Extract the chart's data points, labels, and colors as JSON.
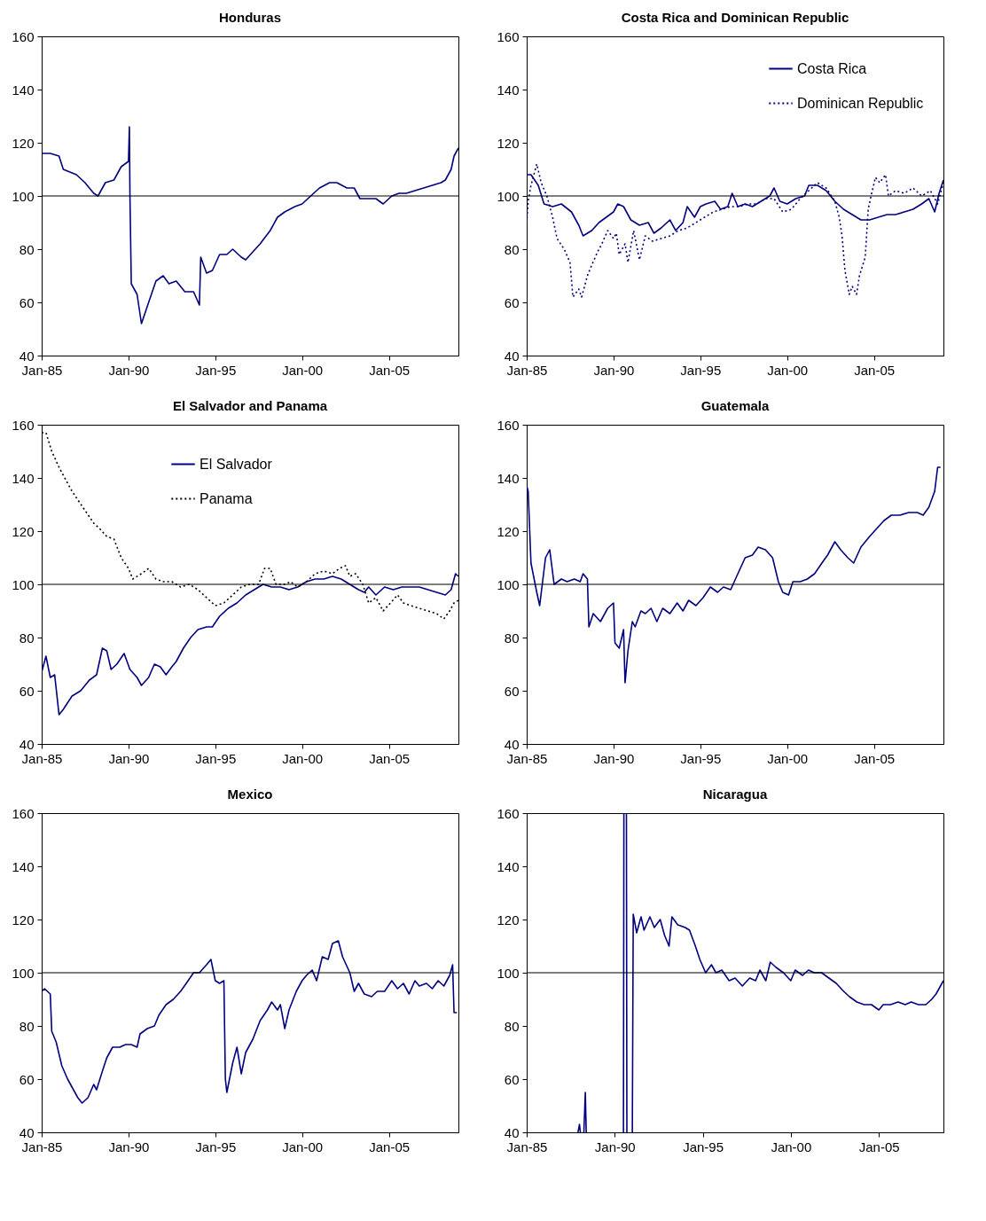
{
  "chart_data": [
    {
      "type": "line",
      "title": "Honduras",
      "series": [
        {
          "color": "#000080",
          "line_style": "solid",
          "x": [
            "1985-01",
            "1985-07",
            "1986-01",
            "1986-04",
            "1987-01",
            "1987-07",
            "1988-01",
            "1988-04",
            "1988-09",
            "1989-03",
            "1989-08",
            "1990-01",
            "1990-01-20",
            "1990-02",
            "1990-03",
            "1990-07",
            "1990-10",
            "1991-03",
            "1991-08",
            "1992-01",
            "1992-05",
            "1992-10",
            "1993-04",
            "1993-10",
            "1994-02",
            "1994-03",
            "1994-07",
            "1994-11",
            "1995-04",
            "1995-09",
            "1996-01",
            "1996-07",
            "1996-10",
            "1997-03",
            "1997-08",
            "1998-03",
            "1998-08",
            "1999-01",
            "1999-08",
            "2000-01",
            "2000-07",
            "2001-01",
            "2001-08",
            "2002-01",
            "2002-08",
            "2003-01",
            "2003-05",
            "2003-10",
            "2004-04",
            "2004-09",
            "2005-03",
            "2005-08",
            "2006-01",
            "2006-07",
            "2007-01",
            "2007-07",
            "2008-01",
            "2008-04",
            "2008-08",
            "2008-10",
            "2009-01"
          ],
          "values": [
            116,
            116,
            115,
            110,
            108,
            105,
            101,
            100,
            105,
            106,
            111,
            113,
            126,
            100,
            67,
            63,
            52,
            60,
            68,
            70,
            67,
            68,
            64,
            64,
            59,
            77,
            71,
            72,
            78,
            78,
            80,
            77,
            76,
            79,
            82,
            87,
            92,
            94,
            96,
            97,
            100,
            103,
            105,
            105,
            103,
            103,
            99,
            99,
            99,
            97,
            100,
            101,
            101,
            102,
            103,
            104,
            105,
            106,
            110,
            115,
            118
          ]
        }
      ],
      "xlim": [
        "1985-01",
        "2009-01"
      ],
      "xticks": [
        {
          "value": "1985-01",
          "label": "Jan-85"
        },
        {
          "value": "1990-01",
          "label": "Jan-90"
        },
        {
          "value": "1995-01",
          "label": "Jan-95"
        },
        {
          "value": "2000-01",
          "label": "Jan-00"
        },
        {
          "value": "2005-01",
          "label": "Jan-05"
        }
      ],
      "ylim": [
        40,
        160
      ],
      "yticks": [
        40,
        60,
        80,
        100,
        120,
        140,
        160
      ],
      "ref_lines": [
        {
          "axis": "y",
          "value": 100
        }
      ]
    },
    {
      "type": "line",
      "title": "Costa Rica and Dominican Republic",
      "legend": "top right",
      "series": [
        {
          "name": "Costa Rica",
          "color": "#000080",
          "line_style": "solid",
          "x": [
            "1985-01",
            "1985-04",
            "1985-09",
            "1986-01",
            "1986-07",
            "1987-01",
            "1987-08",
            "1988-01",
            "1988-04",
            "1988-10",
            "1989-03",
            "1989-08",
            "1990-01",
            "1990-04",
            "1990-08",
            "1991-01",
            "1991-07",
            "1992-01",
            "1992-05",
            "1992-10",
            "1993-04",
            "1993-08",
            "1994-01",
            "1994-04",
            "1994-09",
            "1995-01",
            "1995-05",
            "1995-11",
            "1996-03",
            "1996-08",
            "1996-11",
            "1997-03",
            "1997-08",
            "1998-01",
            "1998-07",
            "1999-01",
            "1999-04",
            "1999-08",
            "2000-01",
            "2000-07",
            "2001-01",
            "2001-04",
            "2001-10",
            "2002-04",
            "2002-10",
            "2003-04",
            "2003-10",
            "2004-04",
            "2004-10",
            "2005-04",
            "2005-10",
            "2006-04",
            "2006-10",
            "2007-04",
            "2007-10",
            "2008-03",
            "2008-07",
            "2008-10",
            "2009-01"
          ],
          "values": [
            108,
            108,
            104,
            97,
            96,
            97,
            94,
            89,
            85,
            87,
            90,
            92,
            94,
            97,
            96,
            91,
            89,
            90,
            86,
            88,
            91,
            87,
            90,
            96,
            92,
            96,
            97,
            98,
            95,
            96,
            101,
            96,
            97,
            96,
            98,
            100,
            103,
            98,
            97,
            99,
            100,
            104,
            104,
            102,
            98,
            95,
            93,
            91,
            91,
            92,
            93,
            93,
            94,
            95,
            97,
            99,
            94,
            101,
            106
          ]
        },
        {
          "name": "Dominican Republic",
          "color": "#000080",
          "line_style": "dotted",
          "x": [
            "1985-01",
            "1985-02",
            "1985-04",
            "1985-08",
            "1985-11",
            "1986-03",
            "1986-07",
            "1986-10",
            "1987-03",
            "1987-07",
            "1987-09",
            "1988-01",
            "1988-03",
            "1988-07",
            "1988-10",
            "1989-02",
            "1989-05",
            "1989-09",
            "1990-01",
            "1990-03",
            "1990-05",
            "1990-09",
            "1990-11",
            "1991-03",
            "1991-07",
            "1991-11",
            "1992-04",
            "1992-10",
            "1993-04",
            "1993-10",
            "1994-04",
            "1994-10",
            "1995-04",
            "1995-10",
            "1996-04",
            "1996-10",
            "1997-04",
            "1997-10",
            "1998-04",
            "1998-10",
            "1999-04",
            "1999-10",
            "2000-04",
            "2000-10",
            "2001-04",
            "2001-10",
            "2002-04",
            "2002-10",
            "2003-01",
            "2003-03",
            "2003-05",
            "2003-08",
            "2003-10",
            "2004-01",
            "2004-03",
            "2004-07",
            "2004-09",
            "2004-11",
            "2005-02",
            "2005-05",
            "2005-09",
            "2005-11",
            "2006-04",
            "2006-10",
            "2007-04",
            "2007-10",
            "2008-04",
            "2008-09",
            "2009-01"
          ],
          "values": [
            90,
            98,
            104,
            112,
            105,
            100,
            92,
            84,
            80,
            75,
            62,
            65,
            62,
            70,
            74,
            79,
            82,
            87,
            84,
            86,
            78,
            82,
            75,
            87,
            76,
            85,
            83,
            84,
            85,
            87,
            88,
            90,
            92,
            94,
            95,
            96,
            96,
            97,
            97,
            99,
            99,
            94,
            95,
            99,
            102,
            105,
            103,
            98,
            92,
            85,
            72,
            63,
            66,
            63,
            70,
            77,
            95,
            100,
            107,
            105,
            108,
            100,
            102,
            101,
            103,
            100,
            102,
            97,
            105
          ]
        }
      ],
      "xlim": [
        "1985-01",
        "2009-01"
      ],
      "xticks": [
        {
          "value": "1985-01",
          "label": "Jan-85"
        },
        {
          "value": "1990-01",
          "label": "Jan-90"
        },
        {
          "value": "1995-01",
          "label": "Jan-95"
        },
        {
          "value": "2000-01",
          "label": "Jan-00"
        },
        {
          "value": "2005-01",
          "label": "Jan-05"
        }
      ],
      "ylim": [
        40,
        160
      ],
      "yticks": [
        40,
        60,
        80,
        100,
        120,
        140,
        160
      ],
      "ref_lines": [
        {
          "axis": "y",
          "value": 100
        }
      ]
    },
    {
      "type": "line",
      "title": "El Salvador and Panama",
      "legend": "top",
      "series": [
        {
          "name": "El Salvador",
          "color": "#000080",
          "line_style": "solid",
          "x": [
            "1985-01",
            "1985-04",
            "1985-07",
            "1985-10",
            "1986-01",
            "1986-04",
            "1986-10",
            "1987-04",
            "1987-10",
            "1988-03",
            "1988-07",
            "1988-10",
            "1989-01",
            "1989-05",
            "1989-10",
            "1990-02",
            "1990-07",
            "1990-10",
            "1991-03",
            "1991-07",
            "1991-11",
            "1992-03",
            "1992-07",
            "1992-10",
            "1993-03",
            "1993-08",
            "1994-01",
            "1994-07",
            "1994-11",
            "1995-04",
            "1995-10",
            "1996-04",
            "1996-10",
            "1997-04",
            "1997-10",
            "1998-04",
            "1998-10",
            "1999-04",
            "1999-10",
            "2000-04",
            "2000-10",
            "2001-04",
            "2001-10",
            "2002-04",
            "2002-10",
            "2003-04",
            "2003-08",
            "2003-11",
            "2004-04",
            "2004-10",
            "2005-04",
            "2005-10",
            "2006-04",
            "2006-10",
            "2007-04",
            "2007-10",
            "2008-04",
            "2008-08",
            "2008-11",
            "2009-01"
          ],
          "values": [
            67,
            73,
            65,
            66,
            51,
            53,
            58,
            60,
            64,
            66,
            76,
            75,
            68,
            70,
            74,
            68,
            65,
            62,
            65,
            70,
            69,
            66,
            69,
            71,
            76,
            80,
            83,
            84,
            84,
            88,
            91,
            93,
            96,
            98,
            100,
            99,
            99,
            98,
            99,
            101,
            102,
            102,
            103,
            102,
            100,
            98,
            97,
            99,
            96,
            99,
            98,
            99,
            99,
            99,
            98,
            97,
            96,
            98,
            104,
            103
          ]
        },
        {
          "name": "Panama",
          "color": "#000000",
          "line_style": "dotted",
          "x": [
            "1985-01",
            "1985-04",
            "1985-08",
            "1986-01",
            "1986-05",
            "1986-10",
            "1987-03",
            "1987-08",
            "1988-01",
            "1988-05",
            "1988-10",
            "1989-03",
            "1989-08",
            "1990-01",
            "1990-04",
            "1990-10",
            "1991-03",
            "1991-08",
            "1992-01",
            "1992-07",
            "1993-01",
            "1993-07",
            "1994-01",
            "1994-07",
            "1995-01",
            "1995-07",
            "1996-01",
            "1996-07",
            "1997-01",
            "1997-07",
            "1997-11",
            "1998-03",
            "1998-07",
            "1999-01",
            "1999-05",
            "1999-10",
            "2000-04",
            "2000-10",
            "2001-04",
            "2001-10",
            "2002-03",
            "2002-07",
            "2002-10",
            "2003-02",
            "2003-07",
            "2003-11",
            "2004-04",
            "2004-09",
            "2005-02",
            "2005-07",
            "2005-11",
            "2006-04",
            "2006-10",
            "2007-04",
            "2007-10",
            "2008-03",
            "2008-07",
            "2008-10",
            "2009-01"
          ],
          "values": [
            157,
            157,
            150,
            144,
            140,
            135,
            131,
            127,
            123,
            121,
            118,
            117,
            110,
            106,
            102,
            104,
            106,
            102,
            101,
            101,
            99,
            100,
            98,
            95,
            92,
            93,
            96,
            99,
            100,
            100,
            106,
            106,
            100,
            100,
            101,
            99,
            101,
            104,
            105,
            104,
            106,
            107,
            103,
            104,
            100,
            93,
            95,
            90,
            93,
            96,
            93,
            92,
            91,
            90,
            89,
            87,
            90,
            93,
            94
          ]
        }
      ],
      "xlim": [
        "1985-01",
        "2009-01"
      ],
      "xticks": [
        {
          "value": "1985-01",
          "label": "Jan-85"
        },
        {
          "value": "1990-01",
          "label": "Jan-90"
        },
        {
          "value": "1995-01",
          "label": "Jan-95"
        },
        {
          "value": "2000-01",
          "label": "Jan-00"
        },
        {
          "value": "2005-01",
          "label": "Jan-05"
        }
      ],
      "ylim": [
        40,
        160
      ],
      "yticks": [
        40,
        60,
        80,
        100,
        120,
        140,
        160
      ],
      "ref_lines": [
        {
          "axis": "y",
          "value": 100
        }
      ]
    },
    {
      "type": "line",
      "title": "Guatemala",
      "series": [
        {
          "color": "#000080",
          "line_style": "solid",
          "x": [
            "1985-01",
            "1985-02",
            "1985-04",
            "1985-08",
            "1985-10",
            "1986-02",
            "1986-05",
            "1986-08",
            "1987-01",
            "1987-05",
            "1987-10",
            "1988-02",
            "1988-04",
            "1988-07",
            "1988-08",
            "1988-11",
            "1989-04",
            "1989-09",
            "1990-01",
            "1990-02",
            "1990-05",
            "1990-08",
            "1990-09",
            "1990-11",
            "1991-02",
            "1991-04",
            "1991-08",
            "1991-11",
            "1992-03",
            "1992-07",
            "1992-11",
            "1993-04",
            "1993-09",
            "1994-01",
            "1994-05",
            "1994-10",
            "1995-03",
            "1995-08",
            "1996-01",
            "1996-05",
            "1996-10",
            "1997-03",
            "1997-08",
            "1998-01",
            "1998-05",
            "1998-10",
            "1999-03",
            "1999-07",
            "1999-10",
            "2000-02",
            "2000-05",
            "2000-10",
            "2001-03",
            "2001-08",
            "2002-01",
            "2002-05",
            "2002-10",
            "2003-02",
            "2003-07",
            "2003-11",
            "2004-04",
            "2004-10",
            "2005-03",
            "2005-08",
            "2006-01",
            "2006-07",
            "2007-01",
            "2007-07",
            "2007-11",
            "2008-03",
            "2008-07",
            "2008-09",
            "2008-11"
          ],
          "values": [
            137,
            135,
            108,
            97,
            92,
            110,
            113,
            100,
            102,
            101,
            102,
            101,
            104,
            102,
            84,
            89,
            86,
            91,
            93,
            78,
            76,
            83,
            63,
            75,
            86,
            84,
            90,
            89,
            91,
            86,
            91,
            89,
            93,
            90,
            94,
            92,
            95,
            99,
            97,
            99,
            98,
            104,
            110,
            111,
            114,
            113,
            110,
            101,
            97,
            96,
            101,
            101,
            102,
            104,
            108,
            111,
            116,
            113,
            110,
            108,
            114,
            118,
            121,
            124,
            126,
            126,
            127,
            127,
            126,
            129,
            135,
            144,
            144
          ]
        }
      ],
      "xlim": [
        "1985-01",
        "2009-01"
      ],
      "xticks": [
        {
          "value": "1985-01",
          "label": "Jan-85"
        },
        {
          "value": "1990-01",
          "label": "Jan-90"
        },
        {
          "value": "1995-01",
          "label": "Jan-95"
        },
        {
          "value": "2000-01",
          "label": "Jan-00"
        },
        {
          "value": "2005-01",
          "label": "Jan-05"
        }
      ],
      "ylim": [
        40,
        160
      ],
      "yticks": [
        40,
        60,
        80,
        100,
        120,
        140,
        160
      ],
      "ref_lines": [
        {
          "axis": "y",
          "value": 100
        }
      ]
    },
    {
      "type": "line",
      "title": "Mexico",
      "series": [
        {
          "color": "#000080",
          "line_style": "solid",
          "x": [
            "1985-01",
            "1985-03",
            "1985-07",
            "1985-08",
            "1985-11",
            "1986-03",
            "1986-07",
            "1986-10",
            "1987-02",
            "1987-05",
            "1987-09",
            "1988-01",
            "1988-03",
            "1988-07",
            "1988-10",
            "1989-02",
            "1989-07",
            "1989-11",
            "1990-03",
            "1990-07",
            "1990-09",
            "1991-02",
            "1991-07",
            "1991-10",
            "1992-03",
            "1992-08",
            "1993-01",
            "1993-05",
            "1993-10",
            "1994-02",
            "1994-07",
            "1994-10",
            "1995-01",
            "1995-04",
            "1995-07",
            "1995-08",
            "1995-09",
            "1996-01",
            "1996-04",
            "1996-07",
            "1996-10",
            "1997-03",
            "1997-08",
            "1998-01",
            "1998-04",
            "1998-08",
            "1998-10",
            "1999-01",
            "1999-04",
            "1999-09",
            "2000-01",
            "2000-04",
            "2000-08",
            "2000-11",
            "2001-03",
            "2001-07",
            "2001-10",
            "2002-02",
            "2002-05",
            "2002-10",
            "2003-01",
            "2003-04",
            "2003-08",
            "2004-01",
            "2004-05",
            "2004-10",
            "2005-03",
            "2005-07",
            "2005-11",
            "2006-03",
            "2006-07",
            "2006-10",
            "2007-03",
            "2007-07",
            "2007-11",
            "2008-03",
            "2008-07",
            "2008-09",
            "2008-10",
            "2008-12"
          ],
          "values": [
            93,
            94,
            92,
            78,
            74,
            65,
            60,
            57,
            53,
            51,
            53,
            58,
            56,
            63,
            68,
            72,
            72,
            73,
            73,
            72,
            77,
            79,
            80,
            84,
            88,
            90,
            93,
            96,
            100,
            100,
            103,
            105,
            97,
            96,
            97,
            60,
            55,
            66,
            72,
            62,
            70,
            75,
            82,
            86,
            89,
            86,
            88,
            79,
            86,
            93,
            97,
            99,
            101,
            97,
            106,
            105,
            111,
            112,
            106,
            100,
            93,
            96,
            92,
            91,
            93,
            93,
            97,
            94,
            96,
            92,
            97,
            95,
            96,
            94,
            97,
            95,
            99,
            103,
            85,
            85
          ]
        }
      ],
      "xlim": [
        "1985-01",
        "2009-01"
      ],
      "xticks": [
        {
          "value": "1985-01",
          "label": "Jan-85"
        },
        {
          "value": "1990-01",
          "label": "Jan-90"
        },
        {
          "value": "1995-01",
          "label": "Jan-95"
        },
        {
          "value": "2000-01",
          "label": "Jan-00"
        },
        {
          "value": "2005-01",
          "label": "Jan-05"
        }
      ],
      "ylim": [
        40,
        160
      ],
      "yticks": [
        40,
        60,
        80,
        100,
        120,
        140,
        160
      ],
      "ref_lines": [
        {
          "axis": "y",
          "value": 100
        }
      ]
    },
    {
      "type": "line",
      "title": "Nicaragua",
      "series": [
        {
          "color": "#000080",
          "line_style": "solid",
          "x": [
            "1987-12",
            "1988-01",
            "1988-01-20",
            "1988-02",
            "1988-04",
            "1988-05",
            "1988-05-20",
            "1988-06",
            "1990-07",
            "1990-07-10",
            "1990-07-20",
            "1990-09",
            "1990-09-10",
            "1990-09-20",
            "1991-01",
            "1991-01-20",
            "1991-04",
            "1991-07",
            "1991-09",
            "1992-01",
            "1992-04",
            "1992-08",
            "1992-11",
            "1993-02",
            "1993-04",
            "1993-08",
            "1994-01",
            "1994-04",
            "1994-08",
            "1994-11",
            "1995-03",
            "1995-07",
            "1995-10",
            "1996-02",
            "1996-07",
            "1996-11",
            "1997-04",
            "1997-09",
            "1998-01",
            "1998-04",
            "1998-08",
            "1998-11",
            "1999-03",
            "1999-08",
            "2000-01",
            "2000-04",
            "2000-09",
            "2001-01",
            "2001-05",
            "2001-10",
            "2002-03",
            "2002-08",
            "2003-01",
            "2003-05",
            "2003-10",
            "2004-03",
            "2004-08",
            "2005-01",
            "2005-04",
            "2005-09",
            "2006-02",
            "2006-07",
            "2006-11",
            "2007-04",
            "2007-09",
            "2008-01",
            "2008-04",
            "2008-08",
            "2008-09"
          ],
          "values": [
            40,
            43,
            40,
            null,
            40,
            55,
            40,
            null,
            40,
            160,
            null,
            160,
            40,
            null,
            40,
            122,
            115,
            121,
            116,
            121,
            117,
            120,
            114,
            110,
            121,
            118,
            117,
            116,
            110,
            105,
            100,
            103,
            100,
            101,
            97,
            98,
            95,
            98,
            97,
            101,
            97,
            104,
            102,
            100,
            97,
            101,
            99,
            101,
            100,
            100,
            98,
            96,
            93,
            91,
            89,
            88,
            88,
            86,
            88,
            88,
            89,
            88,
            89,
            88,
            88,
            90,
            92,
            96,
            97
          ]
        }
      ],
      "xlim": [
        "1985-01",
        "2008-09"
      ],
      "xticks": [
        {
          "value": "1985-01",
          "label": "Jan-85"
        },
        {
          "value": "1990-01",
          "label": "Jan-90"
        },
        {
          "value": "1995-01",
          "label": "Jan-95"
        },
        {
          "value": "2000-01",
          "label": "Jan-00"
        },
        {
          "value": "2005-01",
          "label": "Jan-05"
        }
      ],
      "ylim": [
        40,
        160
      ],
      "yticks": [
        40,
        60,
        80,
        100,
        120,
        140,
        160
      ],
      "ref_lines": [
        {
          "axis": "y",
          "value": 100
        }
      ]
    }
  ]
}
